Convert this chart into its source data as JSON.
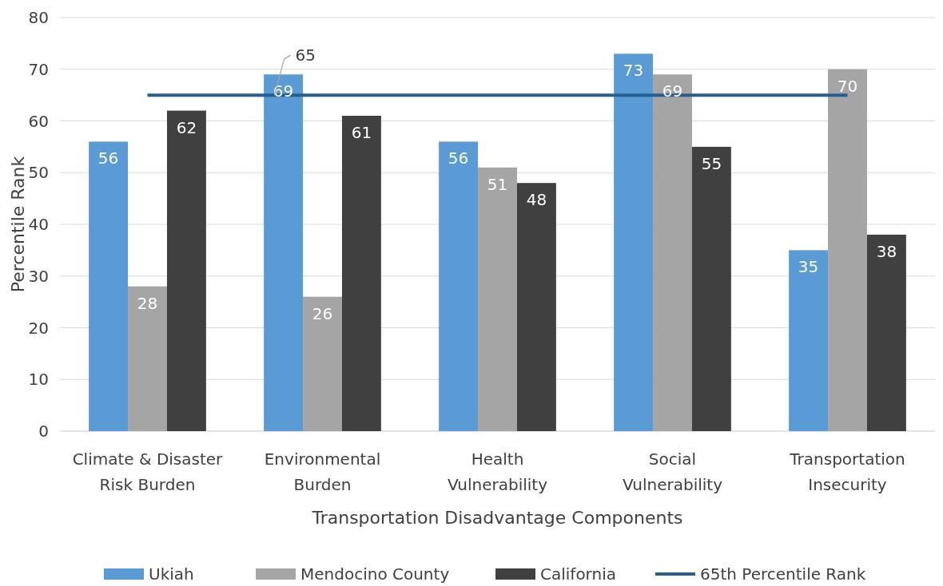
{
  "chart_data": {
    "type": "bar",
    "xlabel": "Transportation Disadvantage Components",
    "ylabel": "Percentile Rank",
    "categories": [
      "Climate & Disaster Risk Burden",
      "Environmental Burden",
      "Health Vulnerability",
      "Social Vulnerability",
      "Transportation Insecurity"
    ],
    "series": [
      {
        "name": "Ukiah",
        "color": "#5b9bd5",
        "values": [
          56,
          69,
          56,
          73,
          35
        ],
        "value_labels": [
          "56",
          "69",
          "56",
          "73",
          "35"
        ]
      },
      {
        "name": "Mendocino County",
        "color": "#a5a5a5",
        "values": [
          28,
          26,
          51,
          69,
          70
        ],
        "value_labels": [
          "28",
          "26",
          "51",
          "69",
          "70"
        ]
      },
      {
        "name": "California",
        "color": "#404040",
        "values": [
          62,
          61,
          48,
          55,
          38
        ],
        "value_labels": [
          "62",
          "61",
          "48",
          "55",
          "38"
        ]
      },
      {
        "name": "65th Percentile Rank",
        "type": "line",
        "color": "#255e91",
        "values": [
          65,
          65,
          65,
          65,
          65
        ],
        "value_labels": [
          null,
          "65",
          null,
          null,
          null
        ]
      }
    ],
    "ylim": [
      0,
      80
    ],
    "yticks": [
      0,
      10,
      20,
      30,
      40,
      50,
      60,
      70,
      80
    ],
    "grid": "y",
    "legend": "bottom"
  }
}
